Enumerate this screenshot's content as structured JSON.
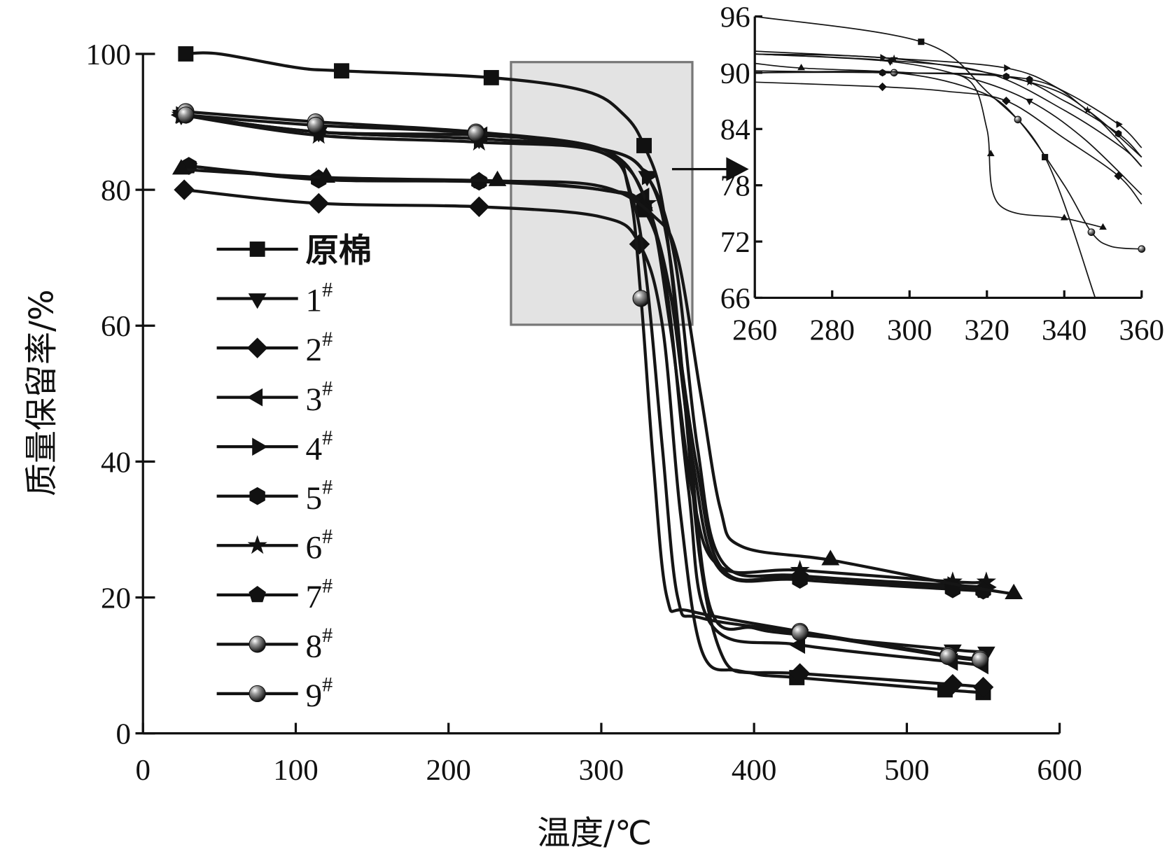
{
  "chart_data": {
    "type": "line",
    "title": "",
    "xlabel": "温度/℃",
    "ylabel": "质量保留率/%",
    "xlim": [
      0,
      600
    ],
    "ylim": [
      0,
      100
    ],
    "xticks": [
      "0",
      "100",
      "200",
      "300",
      "400",
      "500",
      "600"
    ],
    "yticks": [
      "0",
      "20",
      "40",
      "60",
      "80",
      "100"
    ],
    "grid": false,
    "legend_position": "left-middle",
    "highlight_region": {
      "x": [
        240,
        360
      ],
      "y": [
        60,
        99
      ]
    },
    "series": [
      {
        "name": "原棉",
        "marker": "square",
        "points": [
          [
            28,
            100
          ],
          [
            50,
            100
          ],
          [
            100,
            98
          ],
          [
            130,
            97.5
          ],
          [
            228,
            96.5
          ],
          [
            290,
            94.5
          ],
          [
            315,
            91
          ],
          [
            328,
            86.5
          ],
          [
            340,
            78
          ],
          [
            352,
            55
          ],
          [
            365,
            25
          ],
          [
            380,
            11
          ],
          [
            400,
            8.8
          ],
          [
            428,
            8.2
          ],
          [
            525,
            6.4
          ],
          [
            550,
            6
          ]
        ],
        "markers": [
          28,
          130,
          228,
          328,
          428,
          525,
          550
        ]
      },
      {
        "name": "1#",
        "marker": "triangle-down",
        "points": [
          [
            25,
            91
          ],
          [
            115,
            88.5
          ],
          [
            220,
            87.5
          ],
          [
            300,
            86
          ],
          [
            330,
            82
          ],
          [
            345,
            70
          ],
          [
            358,
            42
          ],
          [
            372,
            18
          ],
          [
            400,
            15.5
          ],
          [
            430,
            14.5
          ],
          [
            530,
            12.3
          ],
          [
            552,
            12
          ]
        ],
        "markers": [
          25,
          115,
          220,
          330,
          430,
          530,
          552
        ]
      },
      {
        "name": "2#",
        "marker": "diamond",
        "points": [
          [
            27,
            80
          ],
          [
            115,
            78
          ],
          [
            220,
            77.5
          ],
          [
            300,
            76
          ],
          [
            325,
            72
          ],
          [
            340,
            60
          ],
          [
            352,
            32
          ],
          [
            366,
            12
          ],
          [
            390,
            9.2
          ],
          [
            430,
            8.8
          ],
          [
            530,
            7.2
          ],
          [
            550,
            6.8
          ]
        ],
        "markers": [
          27,
          115,
          220,
          325,
          430,
          530,
          550
        ]
      },
      {
        "name": "3#",
        "marker": "triangle-left",
        "points": [
          [
            25,
            91
          ],
          [
            115,
            88.5
          ],
          [
            222,
            88
          ],
          [
            300,
            86
          ],
          [
            328,
            79
          ],
          [
            343,
            65
          ],
          [
            357,
            36
          ],
          [
            372,
            16
          ],
          [
            430,
            13
          ],
          [
            530,
            10.5
          ],
          [
            550,
            10
          ]
        ],
        "markers": [
          25,
          115,
          222,
          328,
          430,
          530,
          550
        ]
      },
      {
        "name": "4#",
        "marker": "triangle-right",
        "points": [
          [
            25,
            91
          ],
          [
            115,
            88.5
          ],
          [
            220,
            87.5
          ],
          [
            300,
            86
          ],
          [
            330,
            82
          ],
          [
            348,
            70
          ],
          [
            363,
            42
          ],
          [
            380,
            25
          ],
          [
            430,
            23.2
          ],
          [
            530,
            21.8
          ],
          [
            552,
            21.5
          ]
        ],
        "markers": [
          25,
          115,
          220,
          330,
          430,
          530,
          552
        ]
      },
      {
        "name": "5#",
        "marker": "hexagon",
        "points": [
          [
            30,
            83.5
          ],
          [
            115,
            81.5
          ],
          [
            220,
            81.2
          ],
          [
            300,
            80
          ],
          [
            328,
            77.5
          ],
          [
            345,
            65
          ],
          [
            360,
            40
          ],
          [
            378,
            24
          ],
          [
            430,
            22.6
          ],
          [
            530,
            21.2
          ],
          [
            550,
            21
          ]
        ],
        "markers": [
          30,
          115,
          220,
          328,
          430,
          530,
          550
        ]
      },
      {
        "name": "6#",
        "marker": "star",
        "points": [
          [
            25,
            91
          ],
          [
            115,
            88
          ],
          [
            220,
            87
          ],
          [
            300,
            85.5
          ],
          [
            330,
            78
          ],
          [
            345,
            60
          ],
          [
            360,
            35
          ],
          [
            378,
            24.5
          ],
          [
            430,
            24
          ],
          [
            530,
            22.3
          ],
          [
            552,
            22.3
          ]
        ],
        "markers": [
          25,
          115,
          220,
          330,
          430,
          530,
          552
        ]
      },
      {
        "name": "7#",
        "marker": "pentagon",
        "points": [
          [
            30,
            83.5
          ],
          [
            115,
            81.7
          ],
          [
            220,
            81.3
          ],
          [
            300,
            80
          ],
          [
            328,
            77
          ],
          [
            345,
            65
          ],
          [
            362,
            40
          ],
          [
            380,
            24
          ],
          [
            430,
            23
          ],
          [
            530,
            21.5
          ],
          [
            550,
            21
          ]
        ],
        "markers": [
          30,
          115,
          220,
          328,
          430,
          530,
          550
        ]
      },
      {
        "name": "8#",
        "marker": "sphere",
        "points": [
          [
            28,
            91.5
          ],
          [
            113,
            90
          ],
          [
            218,
            88.5
          ],
          [
            300,
            86
          ],
          [
            318,
            80
          ],
          [
            326,
            64
          ],
          [
            334,
            40
          ],
          [
            343,
            20
          ],
          [
            358,
            18
          ],
          [
            430,
            15
          ],
          [
            527,
            11.5
          ],
          [
            548,
            11
          ]
        ],
        "markers": [
          28,
          113,
          218,
          326,
          430,
          527,
          548
        ]
      },
      {
        "name": "9#",
        "marker": "sphere",
        "points": [
          [
            28,
            91
          ],
          [
            113,
            89.5
          ],
          [
            218,
            88.3
          ],
          [
            300,
            85.5
          ],
          [
            320,
            79
          ],
          [
            330,
            66
          ],
          [
            340,
            42
          ],
          [
            350,
            20
          ],
          [
            365,
            17
          ],
          [
            430,
            14.8
          ],
          [
            527,
            11.3
          ],
          [
            548,
            10.8
          ]
        ],
        "markers": [
          28,
          113,
          218,
          430,
          527,
          548
        ]
      },
      {
        "name": "",
        "marker": "triangle-up",
        "points": [
          [
            25,
            83
          ],
          [
            120,
            81.8
          ],
          [
            232,
            81.3
          ],
          [
            300,
            80.5
          ],
          [
            335,
            76
          ],
          [
            350,
            70
          ],
          [
            365,
            50
          ],
          [
            378,
            33
          ],
          [
            392,
            27.5
          ],
          [
            450,
            25.5
          ],
          [
            530,
            22
          ],
          [
            570,
            20.5
          ]
        ],
        "markers": [
          25,
          120,
          232,
          450,
          570
        ]
      }
    ],
    "inset": {
      "xlim": [
        260,
        360
      ],
      "ylim": [
        66,
        96
      ],
      "xticks": [
        "260",
        "280",
        "300",
        "320",
        "340",
        "360"
      ],
      "yticks": [
        "66",
        "72",
        "78",
        "84",
        "90",
        "96"
      ],
      "series": [
        {
          "name": "原棉",
          "marker": "square",
          "points": [
            [
              260,
              96
            ],
            [
              303,
              93.3
            ],
            [
              320,
              88
            ],
            [
              335,
              81
            ],
            [
              348,
              66
            ]
          ],
          "markers": [
            303,
            335
          ]
        },
        {
          "name": "1#",
          "marker": "triangle-down",
          "points": [
            [
              260,
              92
            ],
            [
              295,
              91.2
            ],
            [
              315,
              89.5
            ],
            [
              331,
              87
            ],
            [
              345,
              83
            ],
            [
              360,
              77
            ]
          ],
          "markers": [
            295,
            331
          ]
        },
        {
          "name": "2#",
          "marker": "diamond",
          "points": [
            [
              260,
              89
            ],
            [
              293,
              88.5
            ],
            [
              310,
              88
            ],
            [
              325,
              87
            ],
            [
              340,
              83
            ],
            [
              354,
              79
            ],
            [
              360,
              76
            ]
          ],
          "markers": [
            293,
            325,
            354
          ]
        },
        {
          "name": "3#",
          "marker": "triangle-left",
          "points": [
            [
              260,
              92
            ],
            [
              295,
              91.3
            ],
            [
              320,
              90
            ],
            [
              340,
              86
            ],
            [
              355,
              82
            ],
            [
              360,
              80
            ]
          ],
          "markers": [
            295
          ]
        },
        {
          "name": "4#",
          "marker": "triangle-right",
          "points": [
            [
              260,
              92.3
            ],
            [
              293,
              91.6
            ],
            [
              325,
              90.5
            ],
            [
              340,
              88
            ],
            [
              354,
              84.5
            ],
            [
              360,
              82
            ]
          ],
          "markers": [
            293,
            325,
            354
          ]
        },
        {
          "name": "5#",
          "marker": "hexagon",
          "points": [
            [
              260,
              90.2
            ],
            [
              293,
              90
            ],
            [
              325,
              89.6
            ],
            [
              340,
              87
            ],
            [
              354,
              83.5
            ],
            [
              360,
              81
            ]
          ],
          "markers": [
            293,
            325,
            354
          ]
        },
        {
          "name": "6#",
          "marker": "star",
          "points": [
            [
              260,
              92
            ],
            [
              296,
              91.5
            ],
            [
              331,
              89
            ],
            [
              346,
              86
            ],
            [
              360,
              80
            ]
          ],
          "markers": [
            296,
            331,
            346
          ]
        },
        {
          "name": "7#",
          "marker": "pentagon",
          "points": [
            [
              260,
              90
            ],
            [
              293,
              90
            ],
            [
              331,
              89.3
            ],
            [
              346,
              86
            ],
            [
              360,
              81
            ]
          ],
          "markers": [
            331
          ]
        },
        {
          "name": "8#",
          "marker": "sphere",
          "points": [
            [
              260,
              90
            ],
            [
              296,
              90
            ],
            [
              318,
              88
            ],
            [
              328,
              85
            ],
            [
              340,
              78
            ],
            [
              347,
              73
            ],
            [
              352,
              71.5
            ],
            [
              360,
              71.2
            ]
          ],
          "markers": [
            296,
            328,
            347,
            360
          ]
        },
        {
          "name": "",
          "marker": "triangle-up",
          "points": [
            [
              260,
              91
            ],
            [
              272,
              90.5
            ],
            [
              300,
              90
            ],
            [
              315,
              89.3
            ],
            [
              320,
              84
            ],
            [
              323,
              76
            ],
            [
              340,
              74.5
            ],
            [
              350,
              73.5
            ]
          ],
          "markers": [
            272,
            321,
            340,
            350
          ]
        }
      ]
    }
  }
}
